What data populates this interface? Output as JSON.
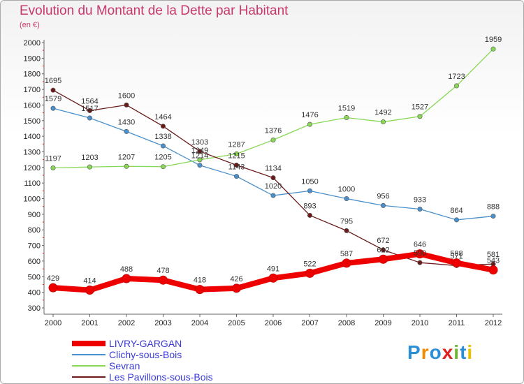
{
  "title": "Evolution du Montant de la Dette par Habitant",
  "unit": "(en €)",
  "logo": "Proxiti",
  "chart_data": {
    "type": "line",
    "title": "Evolution du Montant de la Dette par Habitant",
    "ylabel": "(en €)",
    "ylim": [
      300,
      2000
    ],
    "yticks": [
      300,
      400,
      500,
      600,
      700,
      800,
      900,
      1000,
      1100,
      1200,
      1300,
      1400,
      1500,
      1600,
      1700,
      1800,
      1900,
      2000
    ],
    "x": [
      "2000",
      "2001",
      "2002",
      "2003",
      "2004",
      "2005",
      "2006",
      "2007",
      "2008",
      "2009",
      "2010",
      "2011",
      "2012"
    ],
    "grid": false,
    "legend": "bottom-left",
    "series": [
      {
        "name": "LIVRY-GARGAN",
        "color": "#ee0000",
        "values": [
          429,
          414,
          488,
          478,
          418,
          426,
          491,
          522,
          587,
          612,
          646,
          588,
          543
        ]
      },
      {
        "name": "Clichy-sous-Bois",
        "color": "#4a90cc",
        "values": [
          1579,
          1517,
          1430,
          1338,
          1214,
          1143,
          1020,
          1050,
          1000,
          956,
          933,
          864,
          888
        ]
      },
      {
        "name": "Sevran",
        "color": "#88d855",
        "values": [
          1197,
          1203,
          1207,
          1205,
          1249,
          1287,
          1376,
          1476,
          1519,
          1492,
          1527,
          1723,
          1959
        ]
      },
      {
        "name": "Les Pavillons-sous-Bois",
        "color": "#6b1a1a",
        "values": [
          1695,
          1564,
          1600,
          1464,
          1303,
          1215,
          1134,
          893,
          795,
          672,
          590,
          571,
          581
        ]
      }
    ]
  }
}
